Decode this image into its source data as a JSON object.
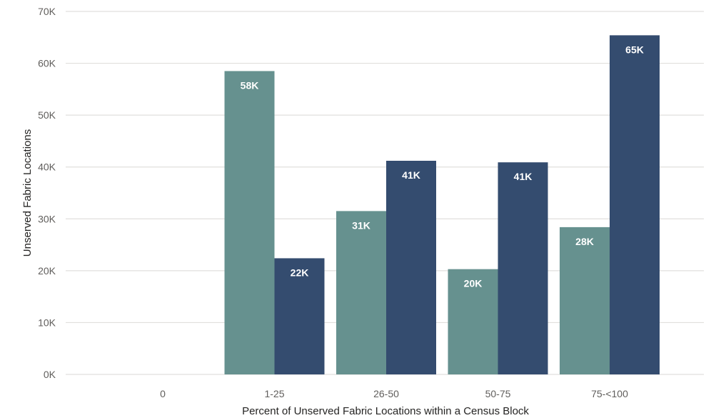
{
  "chart_data": {
    "type": "bar",
    "title": "",
    "xlabel": "Percent of Unserved Fabric Locations within a Census Block",
    "ylabel": "Unserved Fabric Locations",
    "categories": [
      "0",
      "1-25",
      "26-50",
      "50-75",
      "75-<100"
    ],
    "ylim": [
      0,
      70000
    ],
    "yticks": [
      0,
      10000,
      20000,
      30000,
      40000,
      50000,
      60000,
      70000
    ],
    "ytick_labels": [
      "0K",
      "10K",
      "20K",
      "30K",
      "40K",
      "50K",
      "60K",
      "70K"
    ],
    "grid": true,
    "legend": "none",
    "series": [
      {
        "color": "#66918f",
        "values": [
          null,
          58500,
          31500,
          20300,
          28400
        ],
        "labels": [
          "",
          "58K",
          "31K",
          "20K",
          "28K"
        ]
      },
      {
        "color": "#344c6f",
        "values": [
          null,
          22400,
          41200,
          40900,
          65400
        ],
        "labels": [
          "",
          "22K",
          "41K",
          "41K",
          "65K"
        ]
      }
    ]
  }
}
